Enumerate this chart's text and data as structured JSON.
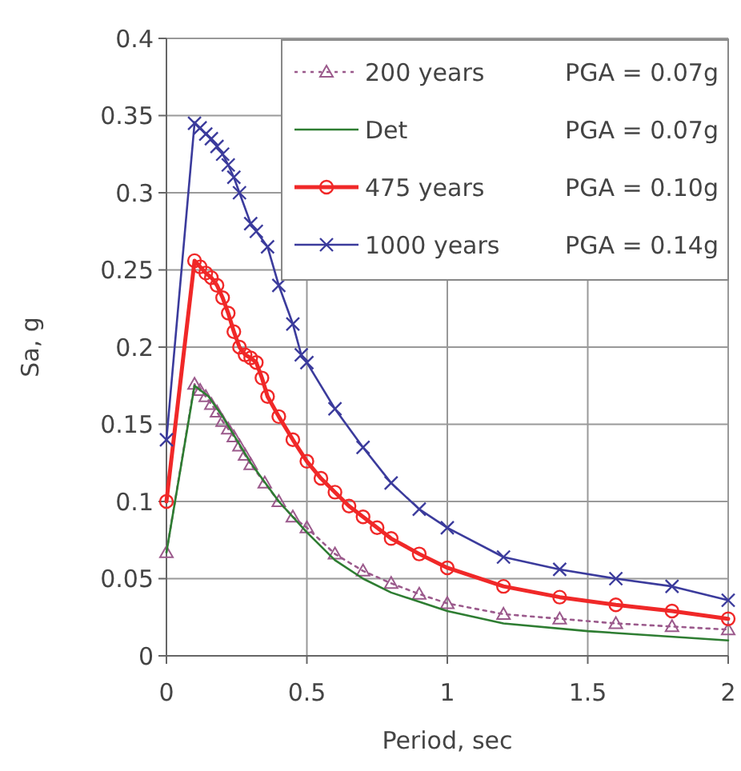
{
  "chart_data": {
    "type": "line",
    "xlabel": "Period, sec",
    "ylabel": "Sa, g",
    "xlim": [
      0,
      2
    ],
    "xticks": [
      0,
      0.5,
      1,
      1.5,
      2
    ],
    "ylim": [
      0,
      0.4
    ],
    "yticks": [
      0,
      0.05,
      0.1,
      0.15,
      0.2,
      0.25,
      0.3,
      0.35,
      0.4
    ],
    "grid": true,
    "legend": "top",
    "annotations": [
      "PGA = 0.07g",
      "PGA = 0.07g",
      "PGA = 0.10g",
      "PGA = 0.14g"
    ],
    "series": [
      {
        "name": "200 years",
        "color": "#9b5a8c",
        "marker": "triangle",
        "line_style": "dotted",
        "x": [
          0,
          0.1,
          0.12,
          0.14,
          0.16,
          0.18,
          0.2,
          0.22,
          0.24,
          0.26,
          0.28,
          0.3,
          0.35,
          0.4,
          0.45,
          0.5,
          0.6,
          0.7,
          0.8,
          0.9,
          1.0,
          1.2,
          1.4,
          1.6,
          1.8,
          2.0
        ],
        "values": [
          0.067,
          0.176,
          0.172,
          0.168,
          0.163,
          0.158,
          0.152,
          0.147,
          0.142,
          0.136,
          0.13,
          0.124,
          0.112,
          0.1,
          0.09,
          0.083,
          0.066,
          0.055,
          0.047,
          0.04,
          0.034,
          0.027,
          0.024,
          0.021,
          0.019,
          0.017
        ]
      },
      {
        "name": "Det",
        "color": "#2e7d32",
        "marker": "none",
        "line_style": "solid",
        "x": [
          0,
          0.1,
          0.15,
          0.2,
          0.3,
          0.4,
          0.5,
          0.6,
          0.7,
          0.8,
          1.0,
          1.2,
          1.5,
          2.0
        ],
        "values": [
          0.067,
          0.175,
          0.168,
          0.155,
          0.125,
          0.1,
          0.08,
          0.062,
          0.05,
          0.041,
          0.029,
          0.021,
          0.016,
          0.01
        ]
      },
      {
        "name": "475 years",
        "color": "#f02828",
        "marker": "circle",
        "line_style": "solid",
        "x": [
          0,
          0.1,
          0.12,
          0.14,
          0.16,
          0.18,
          0.2,
          0.22,
          0.24,
          0.26,
          0.28,
          0.3,
          0.32,
          0.34,
          0.36,
          0.4,
          0.45,
          0.5,
          0.55,
          0.6,
          0.65,
          0.7,
          0.75,
          0.8,
          0.9,
          1.0,
          1.2,
          1.4,
          1.6,
          1.8,
          2.0
        ],
        "values": [
          0.1,
          0.256,
          0.252,
          0.248,
          0.245,
          0.24,
          0.232,
          0.222,
          0.21,
          0.2,
          0.195,
          0.193,
          0.19,
          0.18,
          0.168,
          0.155,
          0.14,
          0.126,
          0.115,
          0.106,
          0.097,
          0.09,
          0.083,
          0.076,
          0.066,
          0.057,
          0.045,
          0.038,
          0.033,
          0.029,
          0.024
        ]
      },
      {
        "name": "1000 years",
        "color": "#3b3b9c",
        "marker": "cross",
        "line_style": "solid",
        "x": [
          0,
          0.1,
          0.12,
          0.14,
          0.16,
          0.18,
          0.2,
          0.22,
          0.24,
          0.26,
          0.3,
          0.32,
          0.36,
          0.4,
          0.45,
          0.48,
          0.5,
          0.6,
          0.7,
          0.8,
          0.9,
          1.0,
          1.2,
          1.4,
          1.6,
          1.8,
          2.0
        ],
        "values": [
          0.14,
          0.345,
          0.342,
          0.338,
          0.335,
          0.33,
          0.325,
          0.318,
          0.31,
          0.3,
          0.28,
          0.275,
          0.265,
          0.24,
          0.215,
          0.195,
          0.19,
          0.16,
          0.135,
          0.112,
          0.095,
          0.083,
          0.064,
          0.056,
          0.05,
          0.045,
          0.036
        ]
      }
    ]
  }
}
